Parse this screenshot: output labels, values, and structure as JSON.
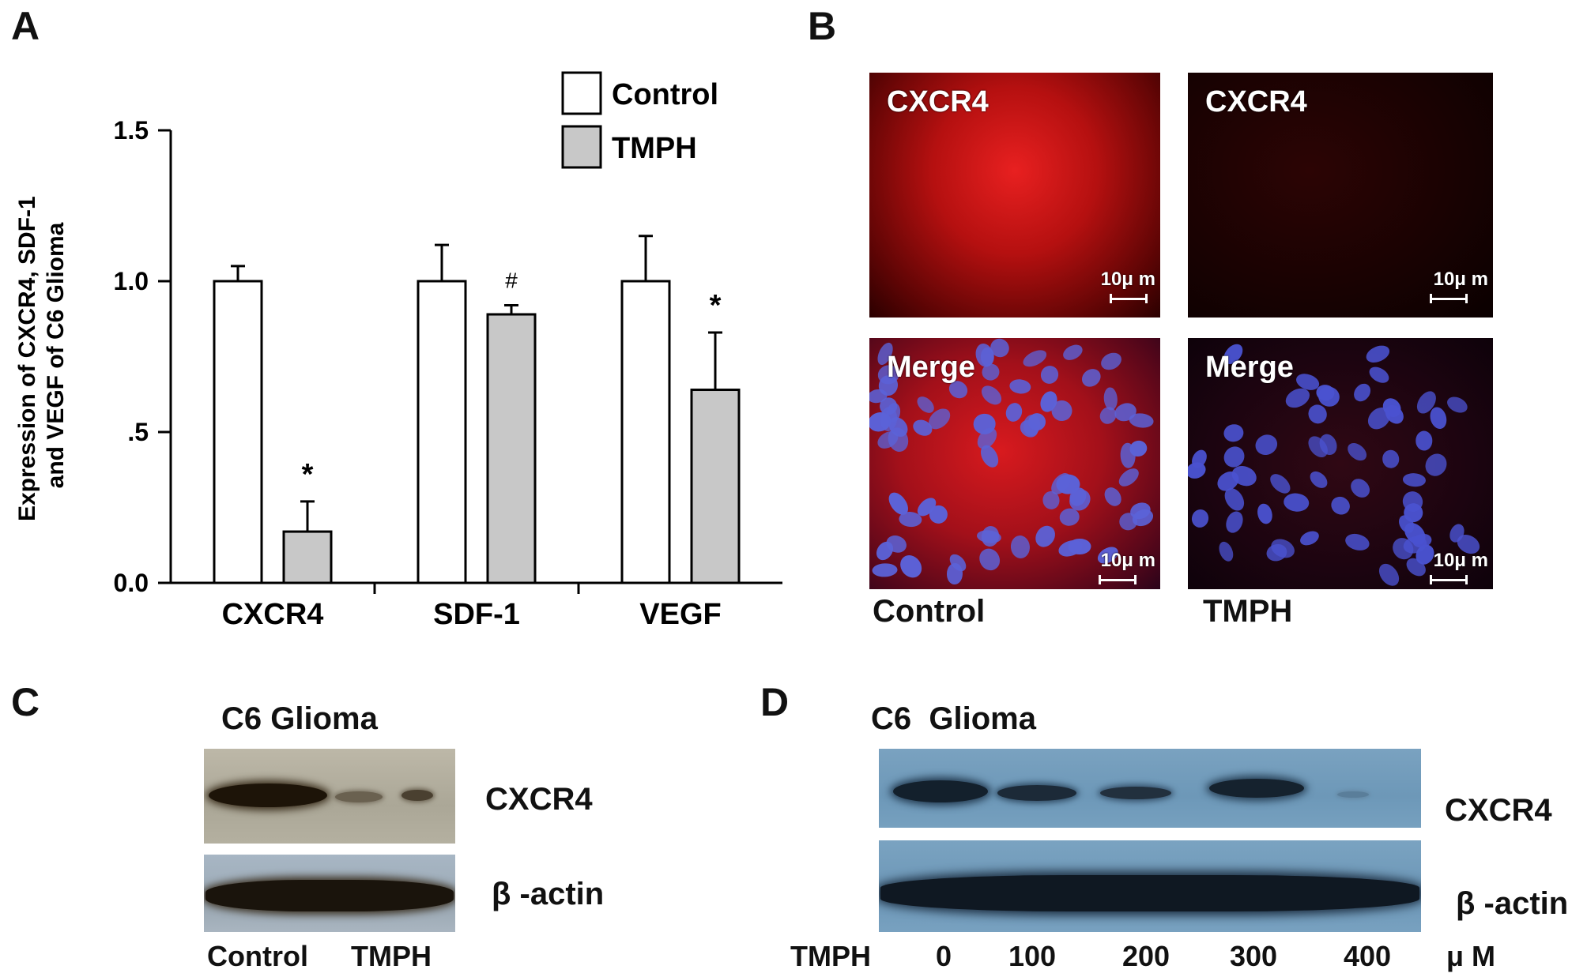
{
  "panels": {
    "a": "A",
    "b": "B",
    "c": "C",
    "d": "D"
  },
  "chart_data": {
    "type": "bar",
    "ylabel_line1": "Expression of CXCR4, SDF-1",
    "ylabel_line2": "and VEGF of C6 Glioma",
    "yticks": [
      "0.0",
      ".5",
      "1.0",
      "1.5"
    ],
    "ylim": [
      0,
      1.5
    ],
    "categories": [
      "CXCR4",
      "SDF-1",
      "VEGF"
    ],
    "series": [
      {
        "name": "Control",
        "color": "#ffffff",
        "values": [
          1.0,
          1.0,
          1.0
        ],
        "errors": [
          0.05,
          0.12,
          0.15
        ]
      },
      {
        "name": "TMPH",
        "color": "#c8c8c8",
        "values": [
          0.17,
          0.89,
          0.64
        ],
        "errors": [
          0.1,
          0.03,
          0.19
        ]
      }
    ],
    "annotations": [
      "*",
      "#",
      "*"
    ],
    "legend": "top-right"
  },
  "panel_b": {
    "images": [
      {
        "title": "CXCR4",
        "scale": "10μ m"
      },
      {
        "title": "CXCR4",
        "scale": "10μ m"
      },
      {
        "title": "Merge",
        "scale": "10μ m"
      },
      {
        "title": "Merge",
        "scale": "10μ m"
      }
    ],
    "col_labels": [
      "Control",
      "TMPH"
    ]
  },
  "panel_c": {
    "title": "C6 Glioma",
    "rows": [
      "CXCR4",
      "β -actin"
    ],
    "lanes": [
      "Control",
      "TMPH"
    ]
  },
  "panel_d": {
    "title": "C6  Glioma",
    "rows": [
      "CXCR4",
      "β -actin"
    ],
    "lane_prefix": "TMPH",
    "lanes": [
      "0",
      "100",
      "200",
      "300",
      "400"
    ],
    "unit": "μ M"
  }
}
